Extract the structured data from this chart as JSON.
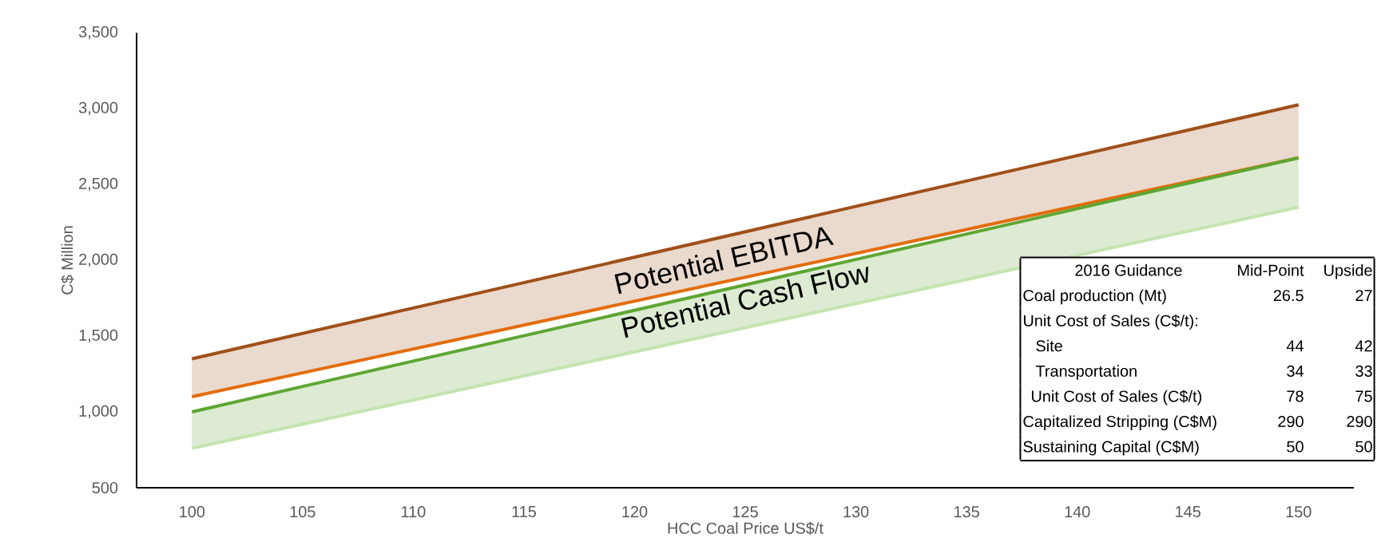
{
  "chart_data": {
    "type": "line",
    "xlabel": "HCC Coal Price US$/t",
    "ylabel": "C$ Million",
    "x": [
      100,
      150
    ],
    "series": [
      {
        "color": "#a0501a",
        "values": [
          1350,
          3025
        ],
        "lower": [
          1100,
          2675
        ],
        "upper": [
          1350,
          3025
        ]
      },
      {
        "color": "#e46c0a",
        "values": [
          1100,
          2675
        ]
      },
      {
        "color": "#5ea633",
        "values": [
          1000,
          2675
        ],
        "lower": [
          760,
          2350
        ],
        "upper": [
          1000,
          2675
        ]
      },
      {
        "color": "#c4e4b0",
        "values": [
          760,
          2350
        ]
      }
    ],
    "xlim": [
      97.5,
      152.5
    ],
    "ylim": [
      500,
      3500
    ],
    "xticks": [
      100,
      105,
      110,
      115,
      120,
      125,
      130,
      135,
      140,
      145,
      150
    ],
    "yticks": [
      {
        "value": 500,
        "label": "500"
      },
      {
        "value": 1000,
        "label": "1,000"
      },
      {
        "value": 1500,
        "label": "1,500"
      },
      {
        "value": 2000,
        "label": "2,000"
      },
      {
        "value": 2500,
        "label": "2,500"
      },
      {
        "value": 3000,
        "label": "3,000"
      },
      {
        "value": 3500,
        "label": "3,500"
      }
    ],
    "grid": false,
    "marker": "none",
    "line_style": "solid",
    "annotations": [
      "Potential EBITDA",
      "Potential Cash Flow",
      "2016 Guidance",
      "Mid-Point",
      "Upside",
      "Coal production (Mt)",
      "26.5",
      "27",
      "Unit Cost of Sales (C$/t):",
      "Site",
      "44",
      "42",
      "Transportation",
      "34",
      "33",
      "Unit Cost of Sales (C$/t)",
      "78",
      "75",
      "Capitalized Stripping (C$M)",
      "290",
      "290",
      "Sustaining Capital (C$M)",
      "50",
      "50"
    ]
  }
}
